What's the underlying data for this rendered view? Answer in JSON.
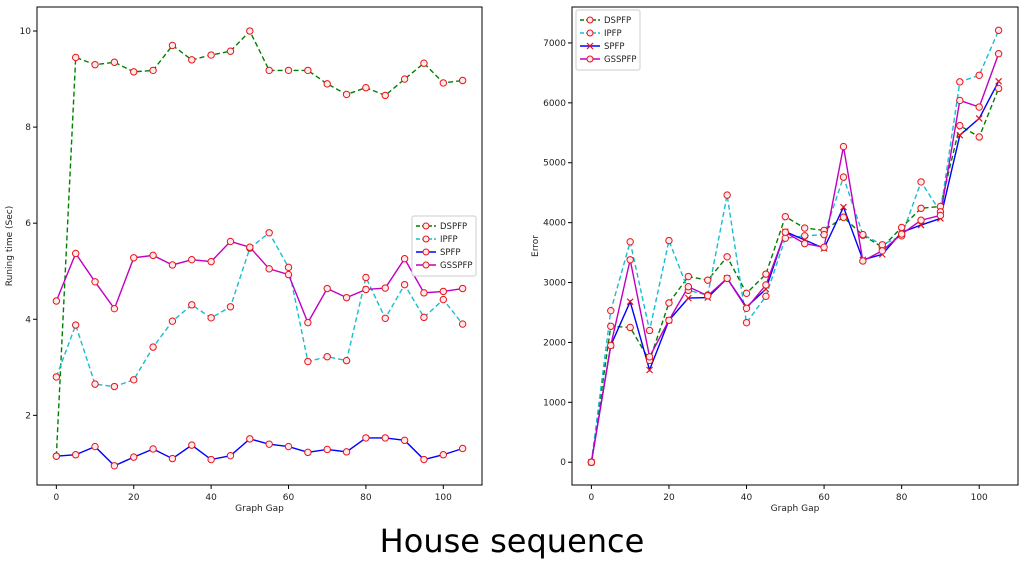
{
  "caption": "House sequence",
  "chart_data": [
    {
      "type": "line",
      "xlabel": "Graph Gap",
      "ylabel": "Runing time (Sec)",
      "xlim": [
        -5,
        110
      ],
      "ylim": [
        0.55,
        10.5
      ],
      "xticks": [
        0,
        20,
        40,
        60,
        80,
        100
      ],
      "yticks": [
        2,
        4,
        6,
        8,
        10
      ],
      "grid": false,
      "legend_position": "center-right",
      "x": [
        0,
        5,
        10,
        15,
        20,
        25,
        30,
        35,
        40,
        45,
        50,
        55,
        60,
        65,
        70,
        75,
        80,
        85,
        90,
        95,
        100,
        105
      ],
      "series": [
        {
          "name": "DSPFP",
          "color": "#008000",
          "linestyle": "dashed",
          "marker": "circle",
          "values": [
            1.15,
            9.45,
            9.3,
            9.35,
            9.15,
            9.18,
            9.7,
            9.4,
            9.5,
            9.58,
            10.0,
            9.18,
            9.18,
            9.18,
            8.9,
            8.68,
            8.82,
            8.66,
            9.0,
            9.33,
            8.92,
            8.97
          ]
        },
        {
          "name": "IPFP",
          "color": "#17becf",
          "linestyle": "dashed",
          "marker": "circle",
          "values": [
            2.8,
            3.88,
            2.65,
            2.6,
            2.74,
            3.42,
            3.96,
            4.3,
            4.03,
            4.26,
            5.48,
            5.8,
            5.08,
            3.12,
            3.22,
            3.14,
            4.87,
            4.02,
            4.72,
            4.04,
            4.41,
            3.9
          ]
        },
        {
          "name": "SPFP",
          "color": "#0000ff",
          "linestyle": "solid",
          "marker": "circle",
          "values": [
            1.15,
            1.18,
            1.35,
            0.95,
            1.13,
            1.3,
            1.1,
            1.38,
            1.08,
            1.16,
            1.51,
            1.4,
            1.35,
            1.23,
            1.29,
            1.24,
            1.53,
            1.53,
            1.48,
            1.08,
            1.18,
            1.31
          ]
        },
        {
          "name": "GSSPFP",
          "color": "#c000c0",
          "linestyle": "solid",
          "marker": "circle",
          "values": [
            4.38,
            5.37,
            4.78,
            4.22,
            5.28,
            5.33,
            5.13,
            5.24,
            5.2,
            5.62,
            5.5,
            5.05,
            4.93,
            3.93,
            4.64,
            4.45,
            4.62,
            4.65,
            5.26,
            4.55,
            4.58,
            4.64
          ]
        }
      ]
    },
    {
      "type": "line",
      "xlabel": "Graph Gap",
      "ylabel": "Error",
      "xlim": [
        -5,
        110
      ],
      "ylim": [
        -380,
        7600
      ],
      "xticks": [
        0,
        20,
        40,
        60,
        80,
        100
      ],
      "yticks": [
        0,
        1000,
        2000,
        3000,
        4000,
        5000,
        6000,
        7000
      ],
      "grid": false,
      "legend_position": "top-left",
      "x": [
        0,
        5,
        10,
        15,
        20,
        25,
        30,
        35,
        40,
        45,
        50,
        55,
        60,
        65,
        70,
        75,
        80,
        85,
        90,
        95,
        100,
        105
      ],
      "series": [
        {
          "name": "DSPFP",
          "color": "#008000",
          "linestyle": "dashed",
          "marker": "circle",
          "values": [
            0,
            2270,
            2250,
            1700,
            2660,
            3100,
            3040,
            3430,
            2820,
            3140,
            4100,
            3910,
            3870,
            4090,
            3790,
            3590,
            3920,
            4240,
            4270,
            5620,
            5430,
            6240
          ]
        },
        {
          "name": "IPFP",
          "color": "#17becf",
          "linestyle": "dashed",
          "marker": "circle",
          "values": [
            0,
            2530,
            3680,
            2200,
            3700,
            2870,
            2790,
            4460,
            2330,
            2770,
            3740,
            3780,
            3800,
            4760,
            3800,
            3630,
            3780,
            4680,
            4180,
            6350,
            6460,
            7210
          ]
        },
        {
          "name": "SPFP",
          "color": "#0000ff",
          "linestyle": "solid",
          "marker": "x",
          "values": [
            0,
            1950,
            2680,
            1540,
            2370,
            2740,
            2750,
            3070,
            2590,
            2890,
            3850,
            3710,
            3570,
            4260,
            3380,
            3470,
            3840,
            3960,
            4070,
            5460,
            5740,
            6360
          ]
        },
        {
          "name": "GSSPFP",
          "color": "#c000c0",
          "linestyle": "solid",
          "marker": "circle",
          "values": [
            0,
            1950,
            3380,
            1760,
            2370,
            2930,
            2780,
            3070,
            2570,
            2960,
            3840,
            3650,
            3590,
            5270,
            3360,
            3530,
            3810,
            4040,
            4120,
            6040,
            5930,
            6820
          ]
        }
      ]
    }
  ]
}
